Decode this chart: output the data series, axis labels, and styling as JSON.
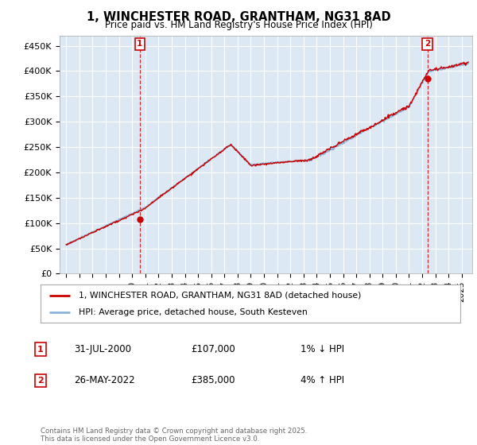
{
  "title": "1, WINCHESTER ROAD, GRANTHAM, NG31 8AD",
  "subtitle": "Price paid vs. HM Land Registry's House Price Index (HPI)",
  "ylim": [
    0,
    470000
  ],
  "yticks": [
    0,
    50000,
    100000,
    150000,
    200000,
    250000,
    300000,
    350000,
    400000,
    450000
  ],
  "ytick_labels": [
    "£0",
    "£50K",
    "£100K",
    "£150K",
    "£200K",
    "£250K",
    "£300K",
    "£350K",
    "£400K",
    "£450K"
  ],
  "hpi_color": "#8ab4d8",
  "price_color": "#cc0000",
  "background_color": "#dce9f5",
  "grid_color": "#ffffff",
  "legend_label_price": "1, WINCHESTER ROAD, GRANTHAM, NG31 8AD (detached house)",
  "legend_label_hpi": "HPI: Average price, detached house, South Kesteven",
  "annotation1_label": "1",
  "annotation1_date": "31-JUL-2000",
  "annotation1_price": "£107,000",
  "annotation1_note": "1% ↓ HPI",
  "annotation2_label": "2",
  "annotation2_date": "26-MAY-2022",
  "annotation2_price": "£385,000",
  "annotation2_note": "4% ↑ HPI",
  "footer": "Contains HM Land Registry data © Crown copyright and database right 2025.\nThis data is licensed under the Open Government Licence v3.0.",
  "sale1_year": 2000.58,
  "sale1_value": 107000,
  "sale2_year": 2022.4,
  "sale2_value": 385000
}
